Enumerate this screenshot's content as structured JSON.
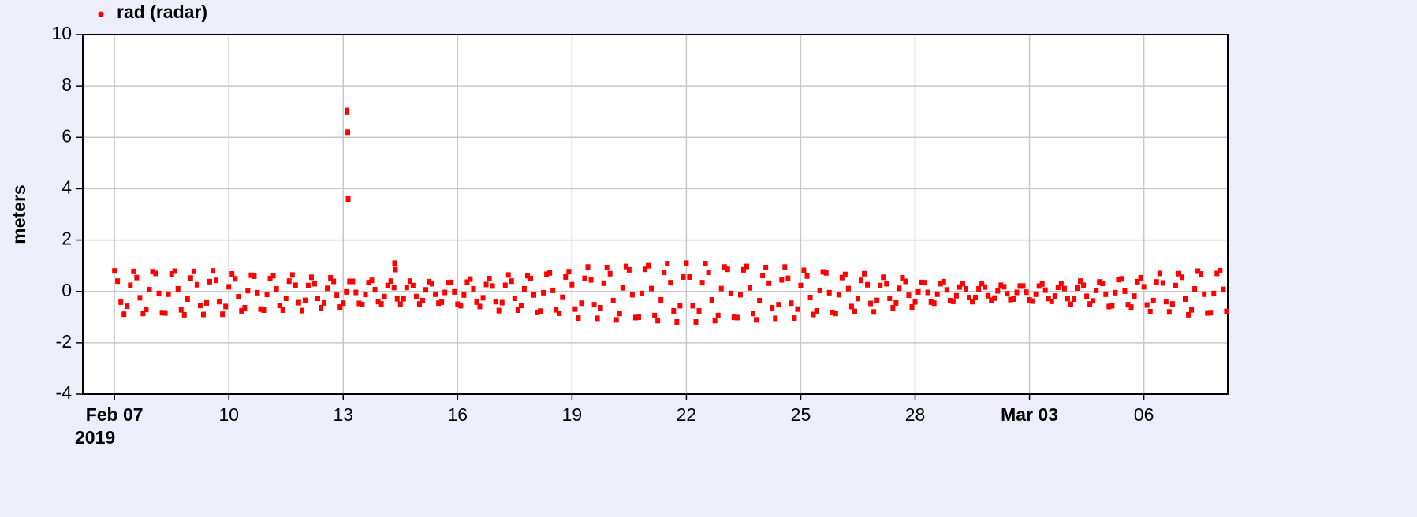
{
  "chart_data": {
    "type": "scatter",
    "ylabel": "meters",
    "x_sublabel": "2019",
    "xlim": [
      -0.83,
      29.2
    ],
    "ylim": [
      -4,
      10
    ],
    "yticks": [
      -4,
      -2,
      0,
      2,
      4,
      6,
      8,
      10
    ],
    "xticks": [
      {
        "value": 0,
        "label": "Feb 07"
      },
      {
        "value": 3,
        "label": "10"
      },
      {
        "value": 6,
        "label": "13"
      },
      {
        "value": 9,
        "label": "16"
      },
      {
        "value": 12,
        "label": "19"
      },
      {
        "value": 15,
        "label": "22"
      },
      {
        "value": 18,
        "label": "25"
      },
      {
        "value": 21,
        "label": "28"
      },
      {
        "value": 24,
        "label": "Mar 03"
      },
      {
        "value": 27,
        "label": "06"
      }
    ],
    "grid": true,
    "legend": "top-left",
    "series": [
      {
        "name": "rad (radar)",
        "color": "#ff0000",
        "x": [
          0,
          0.083,
          0.167,
          0.25,
          0.333,
          0.417,
          0.5,
          0.583,
          0.667,
          0.75,
          0.833,
          0.917,
          1,
          1.083,
          1.167,
          1.25,
          1.333,
          1.417,
          1.5,
          1.583,
          1.667,
          1.75,
          1.833,
          1.917,
          2,
          2.083,
          2.167,
          2.25,
          2.333,
          2.417,
          2.5,
          2.583,
          2.667,
          2.75,
          2.833,
          2.917,
          3,
          3.083,
          3.167,
          3.25,
          3.333,
          3.417,
          3.5,
          3.583,
          3.667,
          3.75,
          3.833,
          3.917,
          4,
          4.083,
          4.167,
          4.25,
          4.333,
          4.417,
          4.5,
          4.583,
          4.667,
          4.75,
          4.833,
          4.917,
          5,
          5.083,
          5.167,
          5.25,
          5.333,
          5.417,
          5.5,
          5.583,
          5.667,
          5.75,
          5.833,
          5.917,
          6,
          6.083,
          6.167,
          6.25,
          6.333,
          6.417,
          6.5,
          6.583,
          6.667,
          6.75,
          6.833,
          6.917,
          7,
          7.083,
          7.167,
          7.25,
          7.333,
          7.417,
          7.5,
          7.583,
          7.667,
          7.75,
          7.833,
          7.917,
          8,
          8.083,
          8.167,
          8.25,
          8.333,
          8.417,
          8.5,
          8.583,
          8.667,
          8.75,
          8.833,
          8.917,
          9,
          9.083,
          9.167,
          9.25,
          9.333,
          9.417,
          9.5,
          9.583,
          9.667,
          9.75,
          9.833,
          9.917,
          10,
          10.083,
          10.167,
          10.25,
          10.333,
          10.417,
          10.5,
          10.583,
          10.667,
          10.75,
          10.833,
          10.917,
          11,
          11.083,
          11.167,
          11.25,
          11.333,
          11.417,
          11.5,
          11.583,
          11.667,
          11.75,
          11.833,
          11.917,
          12,
          12.083,
          12.167,
          12.25,
          12.333,
          12.417,
          12.5,
          12.583,
          12.667,
          12.75,
          12.833,
          12.917,
          13,
          13.083,
          13.167,
          13.25,
          13.333,
          13.417,
          13.5,
          13.583,
          13.667,
          13.75,
          13.833,
          13.917,
          14,
          14.083,
          14.167,
          14.25,
          14.333,
          14.417,
          14.5,
          14.583,
          14.667,
          14.75,
          14.833,
          14.917,
          15,
          15.083,
          15.167,
          15.25,
          15.333,
          15.417,
          15.5,
          15.583,
          15.667,
          15.75,
          15.833,
          15.917,
          16,
          16.083,
          16.167,
          16.25,
          16.333,
          16.417,
          16.5,
          16.583,
          16.667,
          16.75,
          16.833,
          16.917,
          17,
          17.083,
          17.167,
          17.25,
          17.333,
          17.417,
          17.5,
          17.583,
          17.667,
          17.75,
          17.833,
          17.917,
          18,
          18.083,
          18.167,
          18.25,
          18.333,
          18.417,
          18.5,
          18.583,
          18.667,
          18.75,
          18.833,
          18.917,
          19,
          19.083,
          19.167,
          19.25,
          19.333,
          19.417,
          19.5,
          19.583,
          19.667,
          19.75,
          19.833,
          19.917,
          20,
          20.083,
          20.167,
          20.25,
          20.333,
          20.417,
          20.5,
          20.583,
          20.667,
          20.75,
          20.833,
          20.917,
          21,
          21.083,
          21.167,
          21.25,
          21.333,
          21.417,
          21.5,
          21.583,
          21.667,
          21.75,
          21.833,
          21.917,
          22,
          22.083,
          22.167,
          22.25,
          22.333,
          22.417,
          22.5,
          22.583,
          22.667,
          22.75,
          22.833,
          22.917,
          23,
          23.083,
          23.167,
          23.25,
          23.333,
          23.417,
          23.5,
          23.583,
          23.667,
          23.75,
          23.833,
          23.917,
          24,
          24.083,
          24.167,
          24.25,
          24.333,
          24.417,
          24.5,
          24.583,
          24.667,
          24.75,
          24.833,
          24.917,
          25,
          25.083,
          25.167,
          25.25,
          25.333,
          25.417,
          25.5,
          25.583,
          25.667,
          25.75,
          25.833,
          25.917,
          26,
          26.083,
          26.167,
          26.25,
          26.333,
          26.417,
          26.5,
          26.583,
          26.667,
          26.75,
          26.833,
          26.917,
          27,
          27.083,
          27.167,
          27.25,
          27.333,
          27.417,
          27.5,
          27.583,
          27.667,
          27.75,
          27.833,
          27.917,
          28,
          28.083,
          28.167,
          28.25,
          28.333,
          28.417,
          28.5,
          28.583,
          28.667,
          28.75,
          28.833,
          28.917,
          29,
          29.083,
          29.167,
          6.1,
          6.1,
          6.12,
          6.13,
          7.35,
          7.37
        ],
        "values": [
          0.8,
          0.4,
          -0.42,
          -0.89,
          -0.58,
          0.24,
          0.78,
          0.54,
          -0.25,
          -0.86,
          -0.7,
          0.07,
          0.77,
          0.7,
          -0.08,
          -0.83,
          -0.84,
          -0.11,
          0.68,
          0.79,
          0.1,
          -0.72,
          -0.91,
          -0.3,
          0.52,
          0.78,
          0.26,
          -0.55,
          -0.9,
          -0.45,
          0.38,
          0.8,
          0.43,
          -0.4,
          -0.89,
          -0.59,
          0.18,
          0.68,
          0.49,
          -0.21,
          -0.76,
          -0.64,
          0.03,
          0.63,
          0.59,
          -0.05,
          -0.69,
          -0.73,
          -0.12,
          0.5,
          0.61,
          0.1,
          -0.55,
          -0.73,
          -0.27,
          0.4,
          0.64,
          0.24,
          -0.44,
          -0.75,
          -0.35,
          0.23,
          0.55,
          0.3,
          -0.27,
          -0.64,
          -0.45,
          0.12,
          0.53,
          0.39,
          -0.15,
          -0.61,
          -0.46,
          -0.02,
          0.39,
          0.39,
          -0.04,
          -0.47,
          -0.51,
          -0.12,
          0.34,
          0.43,
          0.07,
          -0.4,
          -0.49,
          -0.2,
          0.23,
          0.4,
          0.15,
          -0.29,
          -0.5,
          -0.29,
          0.15,
          0.4,
          0.23,
          -0.2,
          -0.49,
          -0.36,
          0.06,
          0.38,
          0.3,
          -0.11,
          -0.46,
          -0.42,
          -0.04,
          0.34,
          0.35,
          -0.02,
          -0.5,
          -0.56,
          -0.14,
          0.36,
          0.48,
          0.1,
          -0.42,
          -0.59,
          -0.25,
          0.27,
          0.5,
          0.21,
          -0.4,
          -0.75,
          -0.44,
          0.24,
          0.64,
          0.4,
          -0.27,
          -0.73,
          -0.55,
          0.1,
          0.61,
          0.5,
          -0.14,
          -0.82,
          -0.77,
          -0.05,
          0.67,
          0.72,
          0.04,
          -0.72,
          -0.85,
          -0.23,
          0.56,
          0.77,
          0.26,
          -0.69,
          -1.04,
          -0.46,
          0.51,
          0.95,
          0.45,
          -0.52,
          -1.05,
          -0.64,
          0.32,
          0.93,
          0.69,
          -0.36,
          -1.11,
          -0.86,
          0.14,
          0.97,
          0.84,
          -0.13,
          -1.02,
          -1.01,
          -0.08,
          0.86,
          1.0,
          0.11,
          -0.94,
          -1.14,
          -0.33,
          0.74,
          1.08,
          0.34,
          -0.76,
          -1.19,
          -0.56,
          0.56,
          1.1,
          0.56,
          -0.56,
          -1.19,
          -0.76,
          0.34,
          1.08,
          0.74,
          -0.33,
          -1.14,
          -0.94,
          0.11,
          0.95,
          0.86,
          -0.08,
          -1.01,
          -1.02,
          -0.13,
          0.84,
          0.97,
          0.14,
          -0.86,
          -1.11,
          -0.36,
          0.62,
          0.93,
          0.32,
          -0.64,
          -1.05,
          -0.52,
          0.45,
          0.95,
          0.51,
          -0.46,
          -1.04,
          -0.69,
          0.23,
          0.82,
          0.6,
          -0.24,
          -0.9,
          -0.76,
          0.04,
          0.76,
          0.72,
          -0.05,
          -0.82,
          -0.86,
          -0.13,
          0.54,
          0.66,
          0.11,
          -0.59,
          -0.78,
          -0.28,
          0.43,
          0.69,
          0.26,
          -0.47,
          -0.8,
          -0.35,
          0.23,
          0.55,
          0.3,
          -0.27,
          -0.64,
          -0.45,
          0.12,
          0.53,
          0.39,
          -0.15,
          -0.61,
          -0.41,
          -0.02,
          0.35,
          0.34,
          -0.04,
          -0.42,
          -0.46,
          -0.11,
          0.3,
          0.38,
          0.06,
          -0.36,
          -0.39,
          -0.17,
          0.17,
          0.3,
          0.1,
          -0.24,
          -0.4,
          -0.24,
          0.1,
          0.3,
          0.17,
          -0.17,
          -0.34,
          -0.26,
          0.02,
          0.24,
          0.18,
          -0.09,
          -0.32,
          -0.3,
          -0.04,
          0.21,
          0.21,
          -0.03,
          -0.33,
          -0.38,
          -0.11,
          0.21,
          0.29,
          0.05,
          -0.28,
          -0.39,
          -0.18,
          0.16,
          0.3,
          0.11,
          -0.28,
          -0.5,
          -0.3,
          0.13,
          0.4,
          0.24,
          -0.19,
          -0.49,
          -0.37,
          0.04,
          0.37,
          0.31,
          -0.11,
          -0.59,
          -0.56,
          -0.05,
          0.46,
          0.49,
          0.01,
          -0.52,
          -0.61,
          -0.18,
          0.38,
          0.53,
          0.18,
          -0.53,
          -0.79,
          -0.36,
          0.37,
          0.7,
          0.33,
          -0.4,
          -0.8,
          -0.49,
          0.23,
          0.69,
          0.55,
          -0.3,
          -0.91,
          -0.72,
          0.1,
          0.79,
          0.68,
          -0.11,
          -0.84,
          -0.83,
          -0.08,
          0.7,
          0.81,
          0.08,
          -0.78,
          7.05,
          6.98,
          6.2,
          3.6,
          1.1,
          0.85
        ]
      }
    ]
  }
}
